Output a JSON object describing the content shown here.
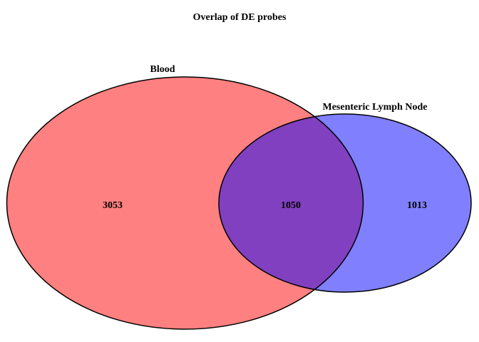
{
  "title": "Overlap of DE probes",
  "sets": [
    {
      "name": "Blood",
      "color": "#ff8080",
      "only_count": "3053"
    },
    {
      "name": "Mesenteric Lymph Node",
      "color": "#8080ff",
      "only_count": "1013"
    }
  ],
  "intersection": {
    "count": "1050",
    "color": "#8040c0"
  },
  "outline_color": "#000000"
}
